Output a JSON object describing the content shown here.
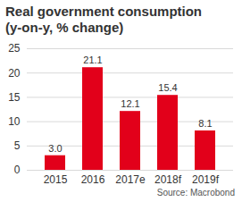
{
  "chart_data": {
    "type": "bar",
    "title": "Real government consumption",
    "subtitle": "(y-on-y, % change)",
    "caption": "Source: Macrobond",
    "categories": [
      "2015",
      "2016",
      "2017e",
      "2018f",
      "2019f"
    ],
    "values": [
      3.0,
      21.1,
      12.1,
      15.4,
      8.1
    ],
    "value_labels": [
      "3.0",
      "21.1",
      "12.1",
      "15.4",
      "8.1"
    ],
    "color": "#e2001a",
    "ylim": [
      0,
      25
    ],
    "yticks": [
      0,
      5,
      10,
      15,
      20,
      25
    ],
    "grid": true,
    "data_labels": true
  }
}
